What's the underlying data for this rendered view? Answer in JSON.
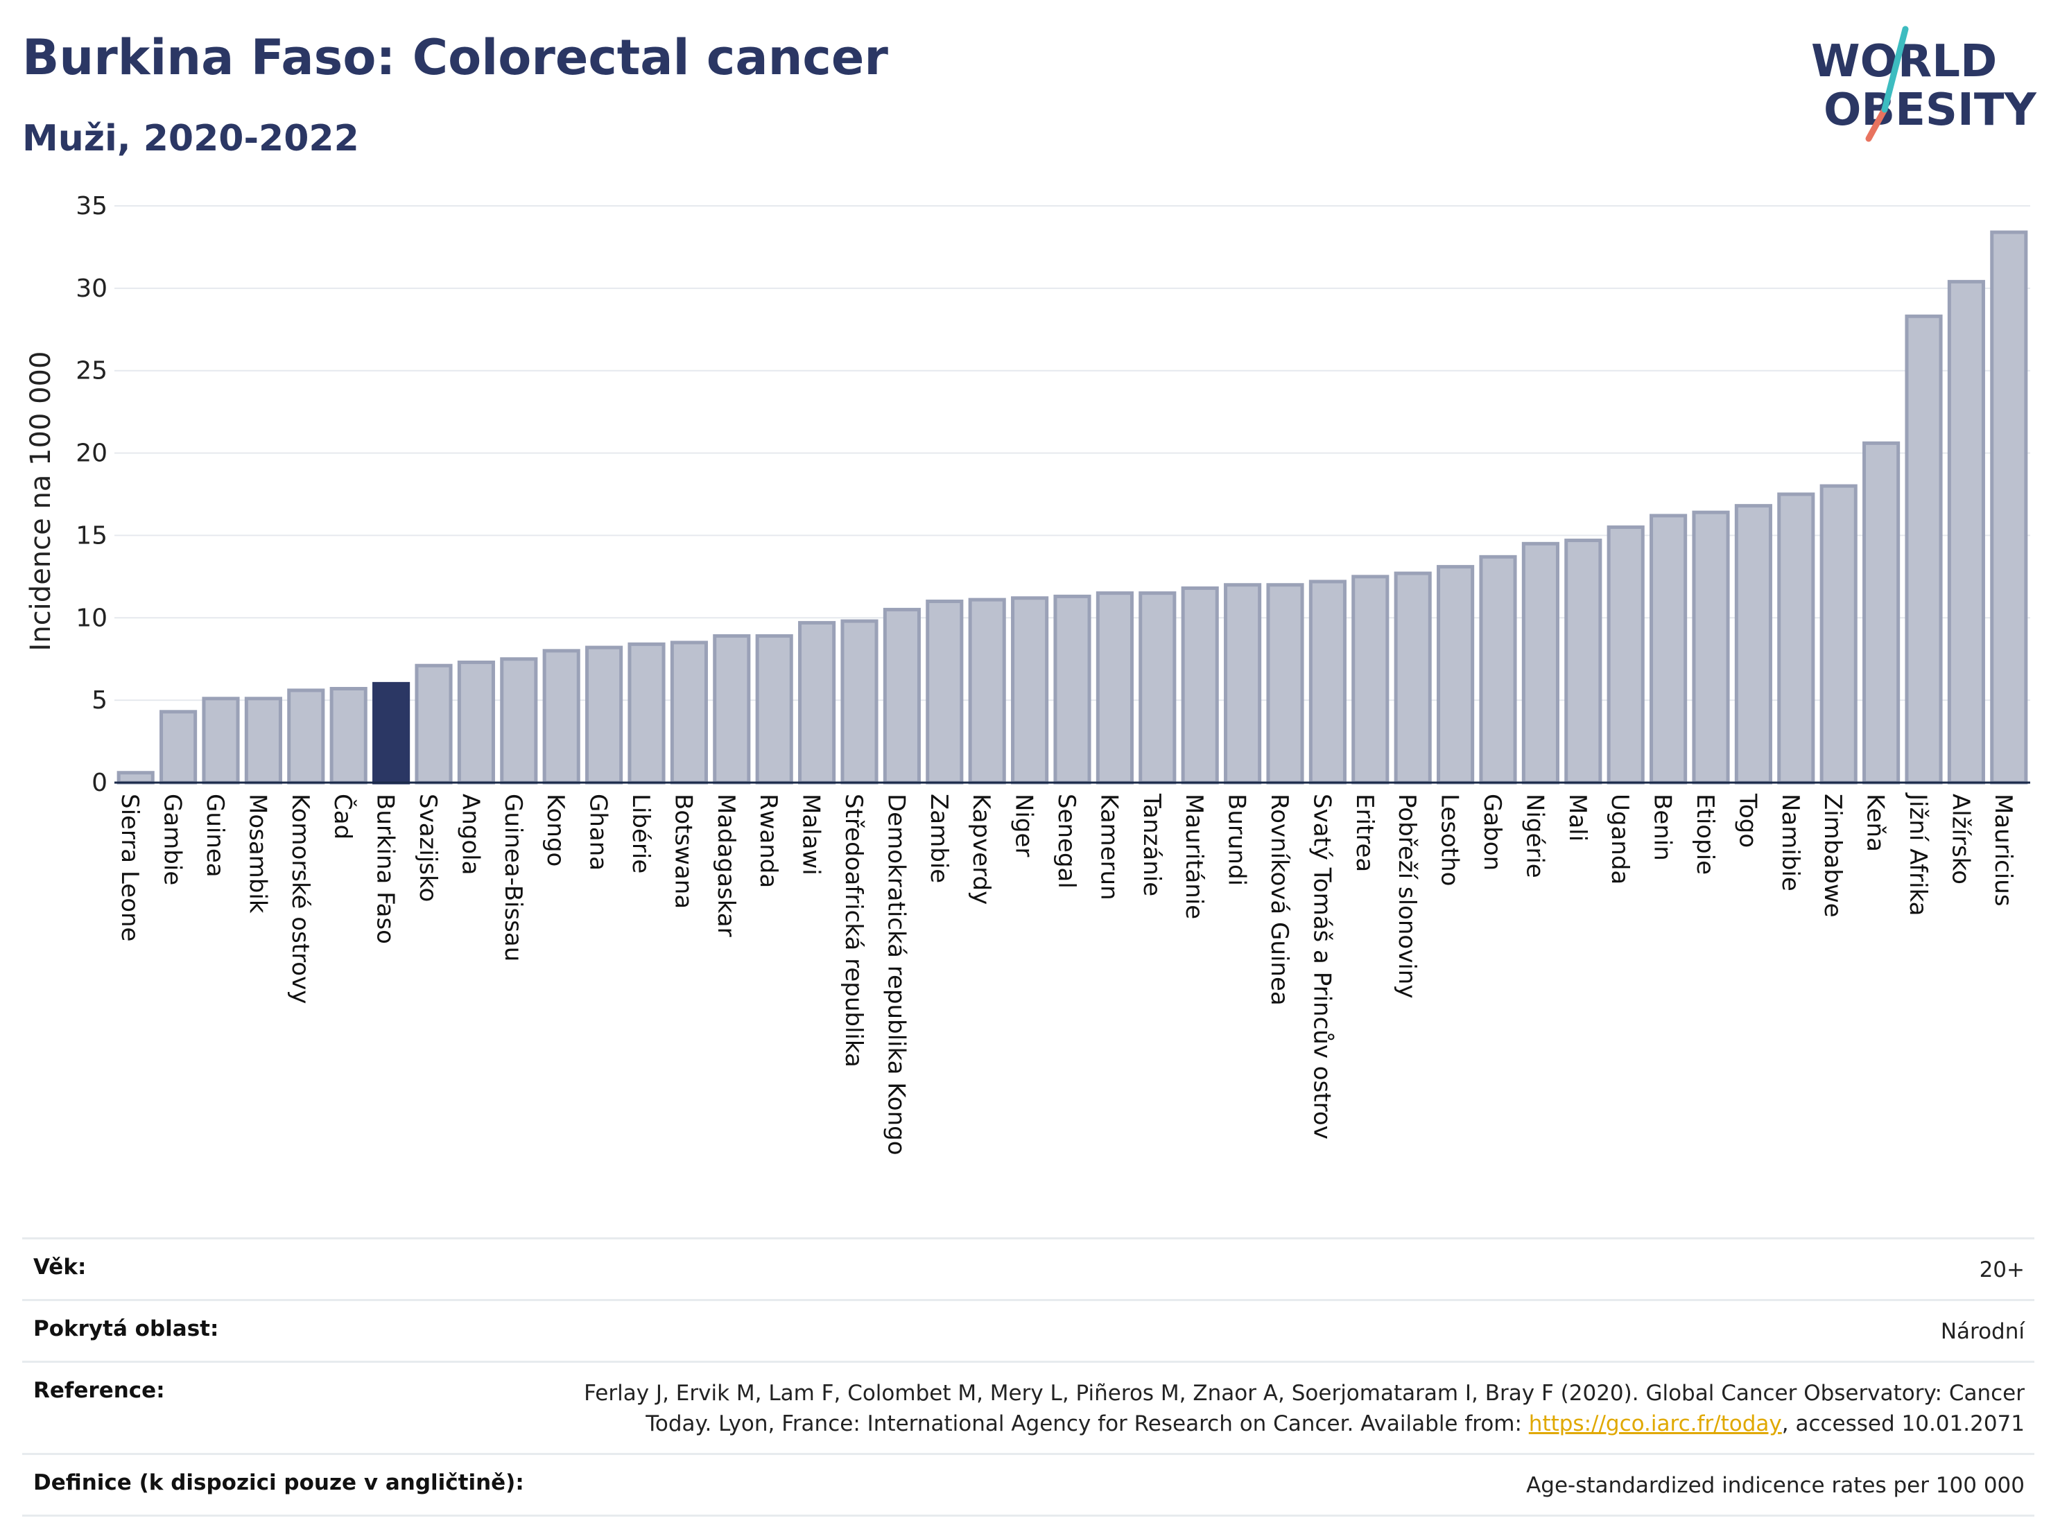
{
  "header": {
    "title": "Burkina Faso: Colorectal cancer",
    "subtitle": "Muži, 2020-2022"
  },
  "logo": {
    "line1": "WORLD",
    "line2": "OBESITY"
  },
  "chart_data": {
    "type": "bar",
    "title": "Burkina Faso: Colorectal cancer",
    "subtitle": "Muži, 2020-2022",
    "ylabel": "Incidence na 100 000",
    "xlabel": "",
    "ylim": [
      0,
      35
    ],
    "yticks": [
      0,
      5,
      10,
      15,
      20,
      25,
      30,
      35
    ],
    "grid": true,
    "legend": "none",
    "highlight": "Burkina Faso",
    "colors": {
      "bar": "#bcc1cf",
      "bar_border": "#9aa1b7",
      "highlight": "#2b3764",
      "grid": "#e6e9ee",
      "axis": "#1b2a4a"
    },
    "categories": [
      "Sierra Leone",
      "Gambie",
      "Guinea",
      "Mosambik",
      "Komorské ostrovy",
      "Čad",
      "Burkina Faso",
      "Svazijsko",
      "Angola",
      "Guinea-Bissau",
      "Kongo",
      "Ghana",
      "Libérie",
      "Botswana",
      "Madagaskar",
      "Rwanda",
      "Malawi",
      "Středoafrická republika",
      "Demokratická republika Kongo",
      "Zambie",
      "Kapverdy",
      "Niger",
      "Senegal",
      "Kamerun",
      "Tanzánie",
      "Mauritánie",
      "Burundi",
      "Rovníková Guinea",
      "Svatý Tomáš a Princův ostrov",
      "Eritrea",
      "Pobřeží slonoviny",
      "Lesotho",
      "Gabon",
      "Nigérie",
      "Mali",
      "Uganda",
      "Benin",
      "Etiopie",
      "Togo",
      "Namibie",
      "Zimbabwe",
      "Keňa",
      "Jižní Afrika",
      "Alžírsko",
      "Mauricius"
    ],
    "values": [
      0.6,
      4.3,
      5.1,
      5.1,
      5.6,
      5.7,
      6.0,
      7.1,
      7.3,
      7.5,
      8.0,
      8.2,
      8.4,
      8.5,
      8.9,
      8.9,
      9.7,
      9.8,
      10.5,
      11.0,
      11.1,
      11.2,
      11.3,
      11.5,
      11.5,
      11.8,
      12.0,
      12.0,
      12.2,
      12.5,
      12.7,
      13.1,
      13.7,
      14.5,
      14.7,
      15.5,
      16.2,
      16.4,
      16.8,
      17.5,
      18.0,
      20.6,
      28.3,
      30.4,
      33.4
    ]
  },
  "meta": {
    "age_label": "Věk:",
    "age_value": "20+",
    "area_label": "Pokrytá oblast:",
    "area_value": "Národní",
    "ref_label": "Reference:",
    "ref_text": "Ferlay J, Ervik M, Lam F, Colombet M, Mery L, Piñeros M, Znaor A, Soerjomataram I, Bray F (2020). Global Cancer Observatory: Cancer Today. Lyon, France: International Agency for Research on Cancer. Available from: ",
    "ref_link": "https://gco.iarc.fr/today",
    "ref_tail": ", accessed 10.01.2071",
    "def_label": "Definice (k dispozici pouze v angličtině):",
    "def_value": "Age-standardized indicence rates per 100 000"
  }
}
